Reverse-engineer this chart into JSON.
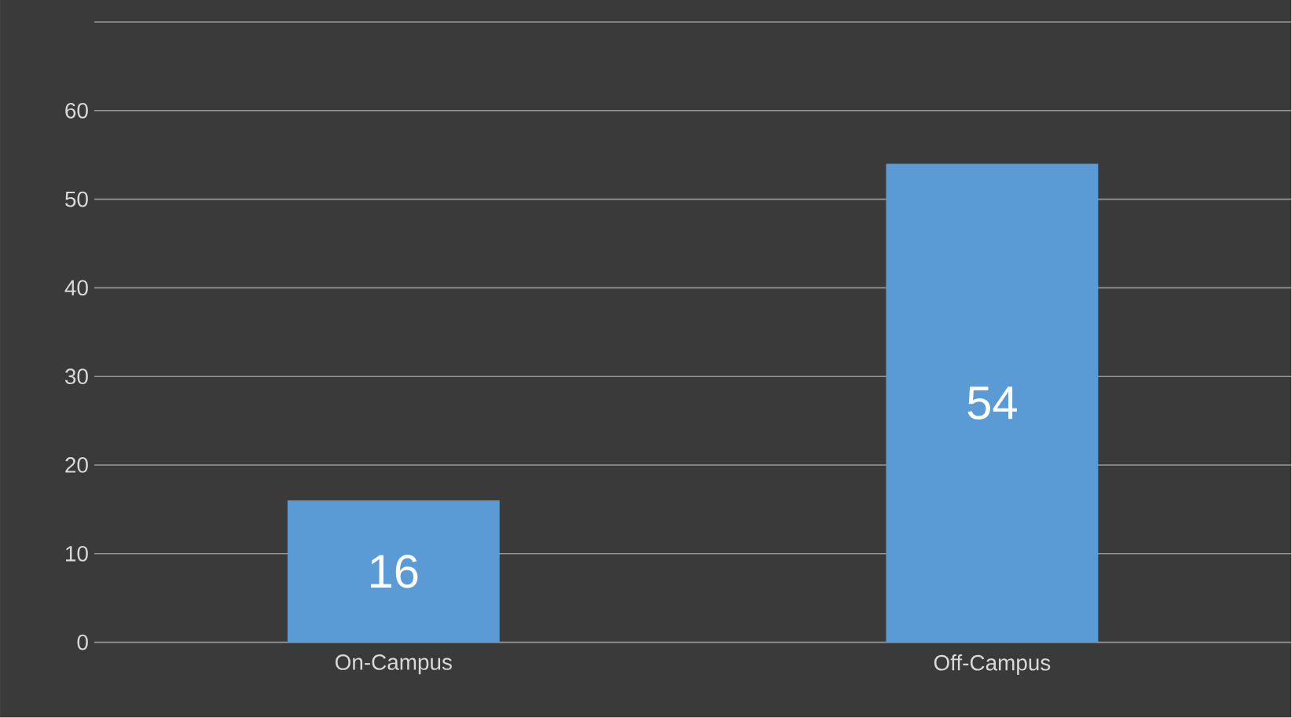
{
  "chart_data": {
    "type": "bar",
    "categories": [
      "On-Campus",
      "Off-Campus"
    ],
    "values": [
      16,
      54
    ],
    "color": "#5b9bd5",
    "ylim": [
      0,
      70
    ],
    "yticks": [
      0,
      10,
      20,
      30,
      40,
      50,
      60,
      {
        "value": 70,
        "label": null
      }
    ],
    "grid": "y",
    "data_labels": true
  }
}
